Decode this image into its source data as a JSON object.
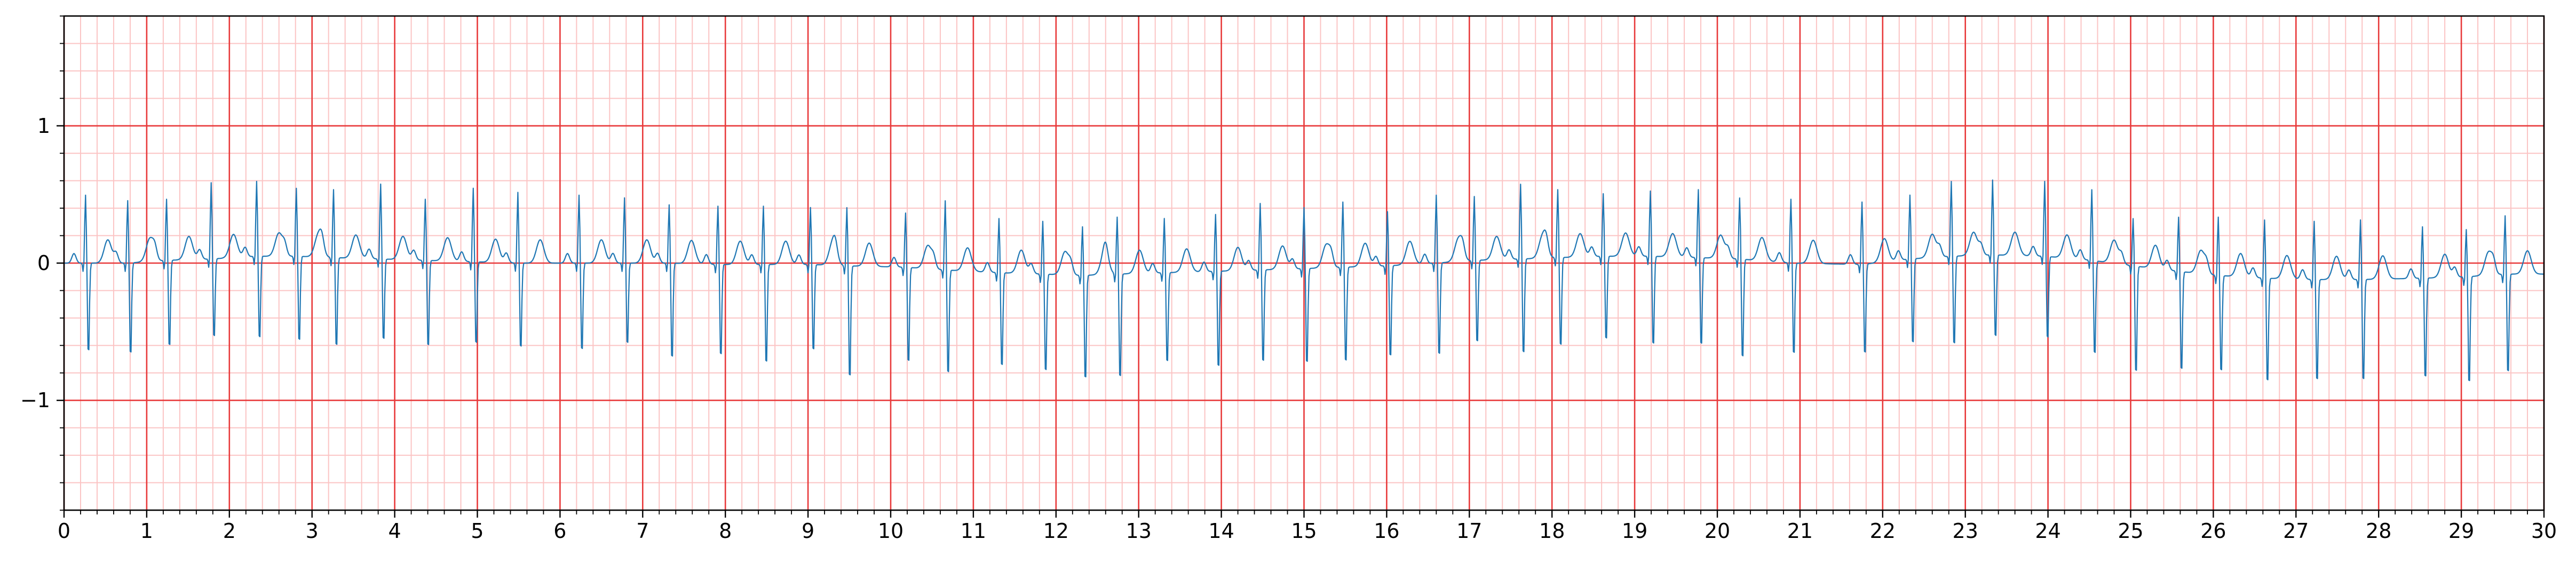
{
  "chart_data": {
    "type": "line",
    "title": "",
    "xlabel": "",
    "ylabel": "",
    "xlim": [
      0,
      30
    ],
    "ylim": [
      -1.8,
      1.8
    ],
    "x_ticks": [
      "0",
      "1",
      "2",
      "3",
      "4",
      "5",
      "6",
      "7",
      "8",
      "9",
      "10",
      "11",
      "12",
      "13",
      "14",
      "15",
      "16",
      "17",
      "18",
      "19",
      "20",
      "21",
      "22",
      "23",
      "24",
      "25",
      "26",
      "27",
      "28",
      "29",
      "30"
    ],
    "y_ticks": [
      {
        "value": 1,
        "label": "1"
      },
      {
        "value": 0,
        "label": "0"
      },
      {
        "value": -1,
        "label": "−1"
      }
    ],
    "grid": {
      "major_x_step": 1,
      "minor_x_step": 0.2,
      "major_y_step": 1,
      "minor_y_step": 0.2,
      "major_color": "#e8393a",
      "minor_color": "#fbc4c4"
    },
    "series": [
      {
        "color": "#1f77b4",
        "sample_rate_hz": 100,
        "description_free": true,
        "beats": [
          {
            "t": 0.26,
            "r": 0.5,
            "s": -0.7,
            "b": 0.0
          },
          {
            "t": 0.77,
            "r": 0.46,
            "s": -0.72,
            "b": 0.0
          },
          {
            "t": 1.24,
            "r": 0.45,
            "s": -0.68,
            "b": 0.02
          },
          {
            "t": 1.78,
            "r": 0.56,
            "s": -0.62,
            "b": 0.03
          },
          {
            "t": 2.33,
            "r": 0.55,
            "s": -0.65,
            "b": 0.05
          },
          {
            "t": 2.81,
            "r": 0.5,
            "s": -0.67,
            "b": 0.05
          },
          {
            "t": 3.26,
            "r": 0.5,
            "s": -0.7,
            "b": 0.04
          },
          {
            "t": 3.83,
            "r": 0.55,
            "s": -0.64,
            "b": 0.03
          },
          {
            "t": 4.37,
            "r": 0.45,
            "s": -0.68,
            "b": 0.02
          },
          {
            "t": 4.95,
            "r": 0.54,
            "s": -0.65,
            "b": 0.01
          },
          {
            "t": 5.49,
            "r": 0.52,
            "s": -0.67,
            "b": 0.0
          },
          {
            "t": 6.23,
            "r": 0.5,
            "s": -0.69,
            "b": 0.0
          },
          {
            "t": 6.78,
            "r": 0.48,
            "s": -0.64,
            "b": 0.0
          },
          {
            "t": 7.32,
            "r": 0.43,
            "s": -0.75,
            "b": 0.0
          },
          {
            "t": 7.91,
            "r": 0.43,
            "s": -0.72,
            "b": -0.01
          },
          {
            "t": 8.46,
            "r": 0.43,
            "s": -0.78,
            "b": -0.01
          },
          {
            "t": 9.03,
            "r": 0.42,
            "s": -0.68,
            "b": -0.01
          },
          {
            "t": 9.47,
            "r": 0.43,
            "s": -0.88,
            "b": -0.02
          },
          {
            "t": 10.18,
            "r": 0.4,
            "s": -0.75,
            "b": -0.03
          },
          {
            "t": 10.66,
            "r": 0.51,
            "s": -0.82,
            "b": -0.05
          },
          {
            "t": 11.31,
            "r": 0.4,
            "s": -0.74,
            "b": -0.07
          },
          {
            "t": 11.84,
            "r": 0.39,
            "s": -0.77,
            "b": -0.08
          },
          {
            "t": 12.32,
            "r": 0.36,
            "s": -0.82,
            "b": -0.09
          },
          {
            "t": 12.74,
            "r": 0.42,
            "s": -0.82,
            "b": -0.08
          },
          {
            "t": 13.31,
            "r": 0.4,
            "s": -0.71,
            "b": -0.07
          },
          {
            "t": 13.93,
            "r": 0.42,
            "s": -0.76,
            "b": -0.06
          },
          {
            "t": 14.47,
            "r": 0.49,
            "s": -0.73,
            "b": -0.05
          },
          {
            "t": 15.0,
            "r": 0.45,
            "s": -0.75,
            "b": -0.04
          },
          {
            "t": 15.47,
            "r": 0.48,
            "s": -0.75,
            "b": -0.03
          },
          {
            "t": 16.01,
            "r": 0.4,
            "s": -0.72,
            "b": -0.02
          },
          {
            "t": 16.6,
            "r": 0.5,
            "s": -0.73,
            "b": 0.0
          },
          {
            "t": 17.06,
            "r": 0.47,
            "s": -0.65,
            "b": 0.02
          },
          {
            "t": 17.62,
            "r": 0.55,
            "s": -0.75,
            "b": 0.03
          },
          {
            "t": 18.07,
            "r": 0.5,
            "s": -0.7,
            "b": 0.04
          },
          {
            "t": 18.62,
            "r": 0.46,
            "s": -0.66,
            "b": 0.05
          },
          {
            "t": 19.19,
            "r": 0.48,
            "s": -0.7,
            "b": 0.05
          },
          {
            "t": 19.77,
            "r": 0.5,
            "s": -0.69,
            "b": 0.04
          },
          {
            "t": 20.27,
            "r": 0.45,
            "s": -0.78,
            "b": 0.03
          },
          {
            "t": 20.89,
            "r": 0.47,
            "s": -0.72,
            "b": 0.0
          },
          {
            "t": 21.75,
            "r": 0.46,
            "s": -0.71,
            "b": -0.01
          },
          {
            "t": 22.33,
            "r": 0.47,
            "s": -0.67,
            "b": 0.03
          },
          {
            "t": 22.83,
            "r": 0.55,
            "s": -0.7,
            "b": 0.05
          },
          {
            "t": 23.33,
            "r": 0.55,
            "s": -0.65,
            "b": 0.06
          },
          {
            "t": 23.96,
            "r": 0.55,
            "s": -0.65,
            "b": 0.05
          },
          {
            "t": 24.53,
            "r": 0.52,
            "s": -0.74,
            "b": 0.02
          },
          {
            "t": 25.03,
            "r": 0.35,
            "s": -0.84,
            "b": -0.02
          },
          {
            "t": 25.58,
            "r": 0.4,
            "s": -0.78,
            "b": -0.06
          },
          {
            "t": 26.06,
            "r": 0.43,
            "s": -0.76,
            "b": -0.09
          },
          {
            "t": 26.62,
            "r": 0.43,
            "s": -0.82,
            "b": -0.11
          },
          {
            "t": 27.22,
            "r": 0.43,
            "s": -0.8,
            "b": -0.12
          },
          {
            "t": 27.78,
            "r": 0.44,
            "s": -0.8,
            "b": -0.12
          },
          {
            "t": 28.53,
            "r": 0.38,
            "s": -0.79,
            "b": -0.11
          },
          {
            "t": 29.06,
            "r": 0.35,
            "s": -0.84,
            "b": -0.1
          },
          {
            "t": 29.53,
            "r": 0.43,
            "s": -0.78,
            "b": -0.08
          }
        ]
      }
    ]
  }
}
